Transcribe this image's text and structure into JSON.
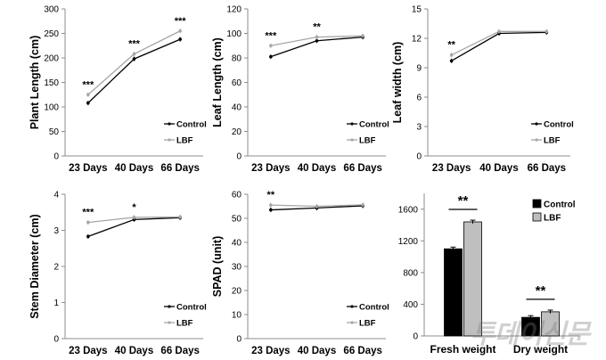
{
  "chart_data": [
    {
      "type": "line",
      "ylabel": "Plant Length (cm)",
      "categories": [
        "23 Days",
        "40 Days",
        "66 Days"
      ],
      "ylim": [
        0,
        300
      ],
      "yticks": [
        0,
        50,
        100,
        150,
        200,
        250,
        300
      ],
      "series": [
        {
          "name": "Control",
          "values": [
            108,
            198,
            238
          ]
        },
        {
          "name": "LBF",
          "values": [
            125,
            208,
            255
          ]
        }
      ],
      "annotations": [
        "***",
        "***",
        "***"
      ],
      "legend": {
        "position": "bottom-right",
        "entries": [
          "Control",
          "LBF"
        ]
      }
    },
    {
      "type": "line",
      "ylabel": "Leaf Length (cm)",
      "categories": [
        "23 Days",
        "40 Days",
        "66 Days"
      ],
      "ylim": [
        0,
        120
      ],
      "yticks": [
        0,
        20,
        40,
        60,
        80,
        100,
        120
      ],
      "series": [
        {
          "name": "Control",
          "values": [
            81,
            94,
            97
          ]
        },
        {
          "name": "LBF",
          "values": [
            90,
            97,
            98
          ]
        }
      ],
      "annotations": [
        "***",
        "**",
        ""
      ],
      "legend": {
        "position": "bottom-right",
        "entries": [
          "Control",
          "LBF"
        ]
      }
    },
    {
      "type": "line",
      "ylabel": "Leaf width (cm)",
      "categories": [
        "23 Days",
        "40 Days",
        "66 Days"
      ],
      "ylim": [
        0,
        15
      ],
      "yticks": [
        0,
        3,
        6,
        9,
        12,
        15
      ],
      "series": [
        {
          "name": "Control",
          "values": [
            9.7,
            12.5,
            12.6
          ]
        },
        {
          "name": "LBF",
          "values": [
            10.3,
            12.7,
            12.7
          ]
        }
      ],
      "annotations": [
        "**",
        "",
        ""
      ],
      "legend": {
        "position": "bottom-right",
        "entries": [
          "Control",
          "LBF"
        ]
      }
    },
    {
      "type": "line",
      "ylabel": "Stem Diameter (cm)",
      "categories": [
        "23 Days",
        "40 Days",
        "66 Days"
      ],
      "ylim": [
        0,
        4
      ],
      "yticks": [
        0,
        1,
        2,
        3,
        4
      ],
      "series": [
        {
          "name": "Control",
          "values": [
            2.83,
            3.3,
            3.35
          ]
        },
        {
          "name": "LBF",
          "values": [
            3.22,
            3.36,
            3.37
          ]
        }
      ],
      "annotations": [
        "***",
        "*",
        ""
      ],
      "legend": {
        "position": "bottom-right",
        "entries": [
          "Control",
          "LBF"
        ]
      }
    },
    {
      "type": "line",
      "ylabel": "SPAD (unit)",
      "categories": [
        "23 Days",
        "40 Days",
        "66 Days"
      ],
      "ylim": [
        0,
        60
      ],
      "yticks": [
        0,
        10,
        20,
        30,
        40,
        50,
        60
      ],
      "series": [
        {
          "name": "Control",
          "values": [
            53.5,
            54.3,
            55.2
          ]
        },
        {
          "name": "LBF",
          "values": [
            55.5,
            55,
            55.6
          ]
        }
      ],
      "annotations": [
        "**",
        "",
        ""
      ],
      "legend": {
        "position": "bottom-right",
        "entries": [
          "Control",
          "LBF"
        ]
      }
    },
    {
      "type": "bar",
      "categories": [
        "Fresh weight",
        "Dry weight"
      ],
      "ylim": [
        0,
        1800
      ],
      "yticks": [
        0,
        400,
        800,
        1200,
        1600
      ],
      "series": [
        {
          "name": "Control",
          "values": [
            1100,
            235
          ]
        },
        {
          "name": "LBF",
          "values": [
            1440,
            305
          ]
        }
      ],
      "annotations": [
        "**",
        "**"
      ],
      "legend": {
        "position": "top-right",
        "entries": [
          "Control",
          "LBF"
        ]
      }
    }
  ],
  "watermark": "투데이신문",
  "colors": {
    "control": "#000000",
    "lbf": "#a6a6a6",
    "control_bar": "#000000",
    "lbf_bar": "#bfbfbf",
    "axis": "#8c8c8c"
  }
}
